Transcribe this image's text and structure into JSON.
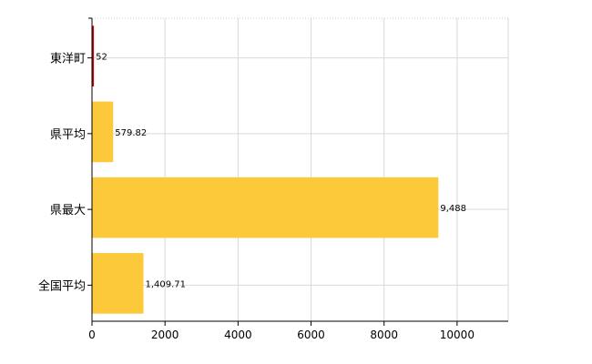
{
  "chart_data": {
    "type": "bar",
    "orientation": "horizontal",
    "categories": [
      "東洋町",
      "県平均",
      "県最大",
      "全国平均"
    ],
    "values": [
      52,
      579.82,
      9488,
      1409.71
    ],
    "data_labels": [
      "52",
      "579.82",
      "9,488",
      "1,409.71"
    ],
    "colors": [
      "#cc0000",
      "#fcc93a",
      "#fcc93a",
      "#fcc93a"
    ],
    "xlim": [
      0,
      11400
    ],
    "x_ticks": [
      0,
      2000,
      4000,
      6000,
      8000,
      10000
    ],
    "x_tick_labels": [
      "0",
      "2000",
      "4000",
      "6000",
      "8000",
      "10000"
    ],
    "grid": true,
    "legend": "none",
    "title": "",
    "xlabel": "",
    "ylabel": ""
  }
}
